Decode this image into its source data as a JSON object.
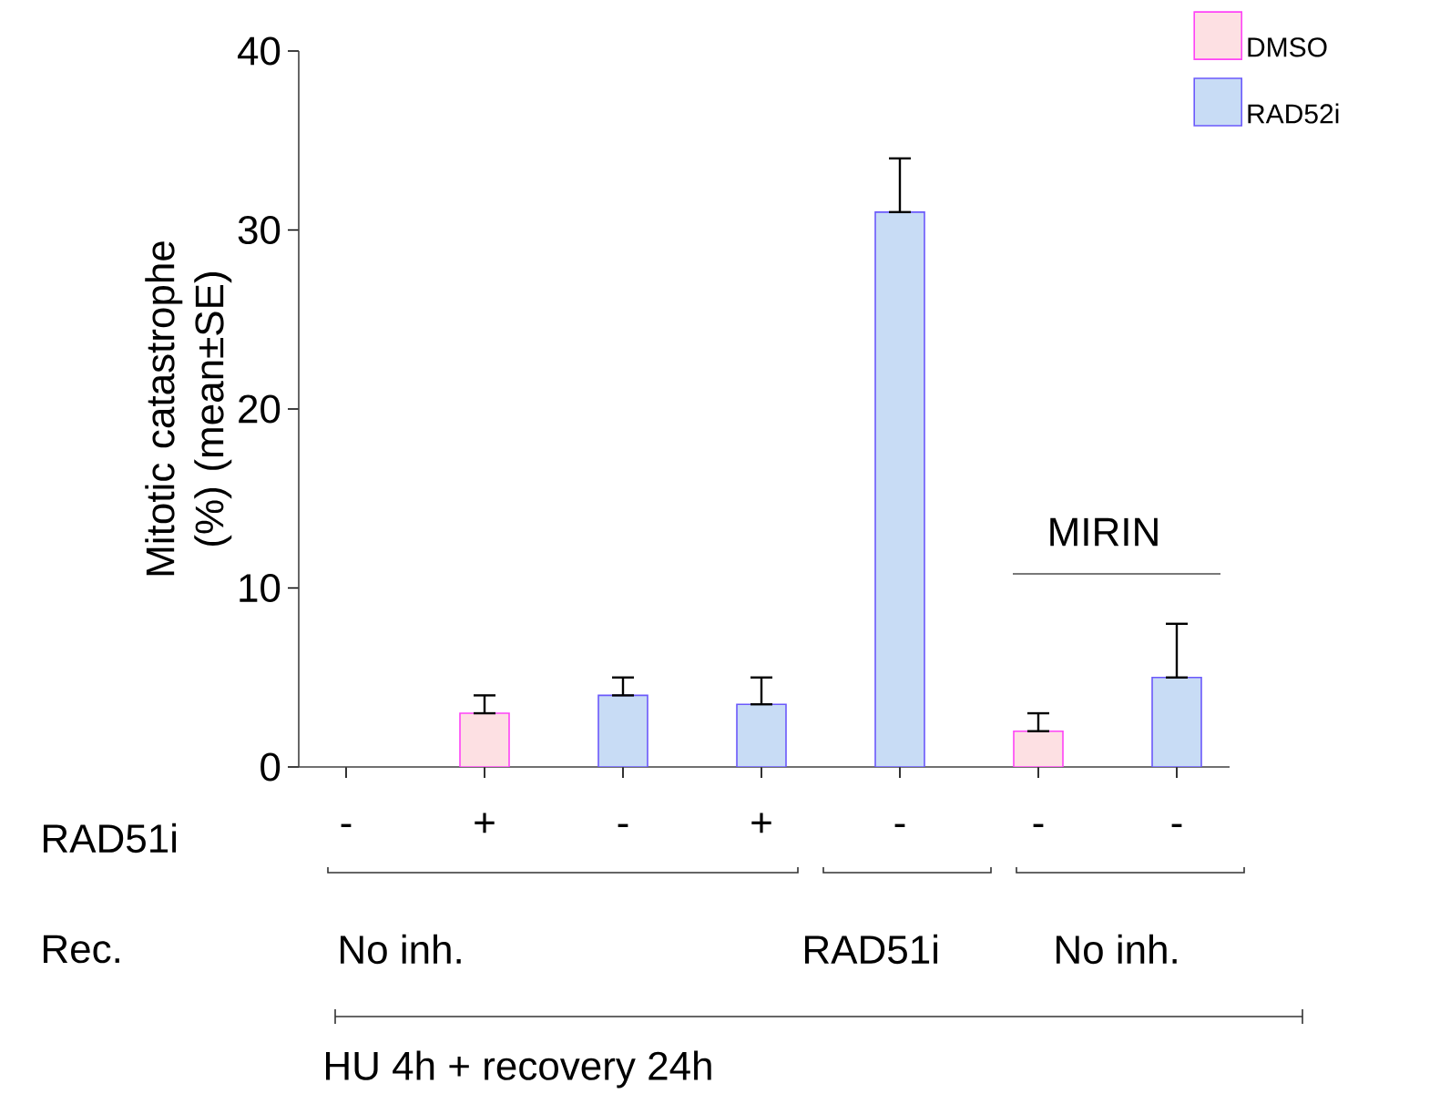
{
  "chart_data": {
    "type": "bar",
    "categories": [
      "-",
      "+",
      "-",
      "+",
      "-",
      "-",
      "-"
    ],
    "ylabel": "Mitotic catastrophe (%) (mean±SE)",
    "series": [
      {
        "name": "DMSO",
        "color": "#fde0e3",
        "values": [
          null,
          3,
          null,
          null,
          null,
          2,
          null
        ],
        "errors": [
          null,
          [
            3,
            4
          ],
          null,
          null,
          null,
          [
            2,
            3
          ],
          null
        ]
      },
      {
        "name": "RAD52i",
        "color": "#c8dcf5",
        "values": [
          null,
          null,
          4,
          3.5,
          31,
          null,
          5
        ],
        "errors": [
          null,
          null,
          [
            4,
            5
          ],
          [
            3.5,
            5
          ],
          [
            31,
            34
          ],
          null,
          [
            5,
            8
          ]
        ]
      }
    ],
    "ylim": [
      0,
      40
    ],
    "yticks": [
      0,
      10,
      20,
      30,
      40
    ],
    "legend": "top right",
    "annotations": [
      "RAD51i",
      "Rec.",
      "No inh.",
      "RAD51i",
      "No inh.",
      "MIRIN",
      "HU 4h + recovery 24h"
    ]
  }
}
